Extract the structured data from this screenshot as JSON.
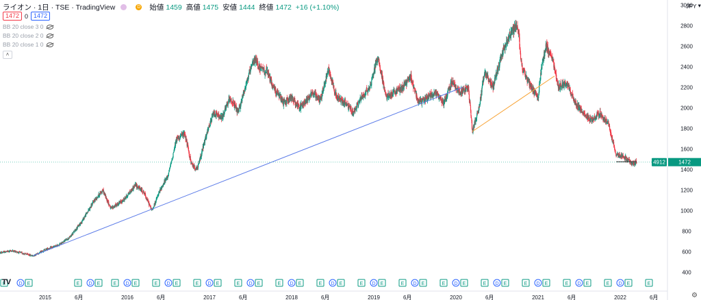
{
  "header": {
    "symbol": "ライオン · 1日 · TSE · TradingView",
    "open_label": "始値",
    "open": "1459",
    "high_label": "高値",
    "high": "1475",
    "low_label": "安値",
    "low": "1444",
    "close_label": "終値",
    "close": "1472",
    "change": "+16 (+1.10%)",
    "bid": "1472",
    "spread": "0",
    "ask": "1472"
  },
  "indicators": [
    "BB 20 close 3 0",
    "BB 20 close 2 0",
    "BB 20 close 1 0"
  ],
  "currency": "JPY",
  "price_tag": {
    "volume": "4912",
    "price": "1472"
  },
  "colors": {
    "up": "#089981",
    "down": "#f23645",
    "line_blue": "#5b7be8",
    "line_orange": "#f7a233",
    "price_line": "#5ec9b4"
  },
  "chart_data": {
    "type": "candlestick",
    "title": "",
    "xlabel": "",
    "ylabel": "",
    "ylim": [
      350,
      3050
    ],
    "y_ticks": [
      400,
      600,
      800,
      1000,
      1200,
      1400,
      1600,
      1800,
      2000,
      2200,
      2400,
      2600,
      2800,
      3000
    ],
    "x_ticks": [
      {
        "label": "2015",
        "t": 2015.0
      },
      {
        "label": "6月",
        "t": 2015.41
      },
      {
        "label": "2016",
        "t": 2016.0
      },
      {
        "label": "6月",
        "t": 2016.41
      },
      {
        "label": "2017",
        "t": 2017.0
      },
      {
        "label": "6月",
        "t": 2017.41
      },
      {
        "label": "2018",
        "t": 2018.0
      },
      {
        "label": "6月",
        "t": 2018.41
      },
      {
        "label": "2019",
        "t": 2019.0
      },
      {
        "label": "6月",
        "t": 2019.41
      },
      {
        "label": "2020",
        "t": 2020.0
      },
      {
        "label": "6月",
        "t": 2020.41
      },
      {
        "label": "2021",
        "t": 2021.0
      },
      {
        "label": "6月",
        "t": 2021.41
      },
      {
        "label": "2022",
        "t": 2022.0
      },
      {
        "label": "6月",
        "t": 2022.41
      }
    ],
    "xlim": [
      2014.45,
      2022.55
    ],
    "price_path": [
      [
        2014.45,
        590
      ],
      [
        2014.6,
        610
      ],
      [
        2014.75,
        580
      ],
      [
        2014.85,
        560
      ],
      [
        2015.0,
        620
      ],
      [
        2015.15,
        660
      ],
      [
        2015.3,
        740
      ],
      [
        2015.45,
        900
      ],
      [
        2015.6,
        1100
      ],
      [
        2015.7,
        1200
      ],
      [
        2015.8,
        1020
      ],
      [
        2015.95,
        1100
      ],
      [
        2016.1,
        1250
      ],
      [
        2016.2,
        1180
      ],
      [
        2016.3,
        1000
      ],
      [
        2016.4,
        1200
      ],
      [
        2016.5,
        1350
      ],
      [
        2016.6,
        1700
      ],
      [
        2016.7,
        1750
      ],
      [
        2016.78,
        1450
      ],
      [
        2016.85,
        1400
      ],
      [
        2016.95,
        1700
      ],
      [
        2017.05,
        1950
      ],
      [
        2017.15,
        1900
      ],
      [
        2017.25,
        2100
      ],
      [
        2017.35,
        1950
      ],
      [
        2017.45,
        2250
      ],
      [
        2017.55,
        2480
      ],
      [
        2017.62,
        2380
      ],
      [
        2017.7,
        2350
      ],
      [
        2017.78,
        2200
      ],
      [
        2017.9,
        2050
      ],
      [
        2018.0,
        2100
      ],
      [
        2018.1,
        2000
      ],
      [
        2018.25,
        2150
      ],
      [
        2018.35,
        2080
      ],
      [
        2018.45,
        2380
      ],
      [
        2018.55,
        2100
      ],
      [
        2018.65,
        2050
      ],
      [
        2018.75,
        1950
      ],
      [
        2018.85,
        2100
      ],
      [
        2018.95,
        2200
      ],
      [
        2019.05,
        2500
      ],
      [
        2019.15,
        2100
      ],
      [
        2019.25,
        2150
      ],
      [
        2019.35,
        2200
      ],
      [
        2019.45,
        2300
      ],
      [
        2019.55,
        2050
      ],
      [
        2019.65,
        2100
      ],
      [
        2019.75,
        2150
      ],
      [
        2019.85,
        2050
      ],
      [
        2019.95,
        2250
      ],
      [
        2020.05,
        2150
      ],
      [
        2020.15,
        2200
      ],
      [
        2020.2,
        1780
      ],
      [
        2020.28,
        2000
      ],
      [
        2020.35,
        2350
      ],
      [
        2020.45,
        2200
      ],
      [
        2020.55,
        2500
      ],
      [
        2020.65,
        2700
      ],
      [
        2020.75,
        2820
      ],
      [
        2020.8,
        2400
      ],
      [
        2020.88,
        2250
      ],
      [
        2020.95,
        2150
      ],
      [
        2021.0,
        2100
      ],
      [
        2021.05,
        2450
      ],
      [
        2021.1,
        2600
      ],
      [
        2021.18,
        2450
      ],
      [
        2021.25,
        2200
      ],
      [
        2021.35,
        2250
      ],
      [
        2021.45,
        2050
      ],
      [
        2021.55,
        1950
      ],
      [
        2021.65,
        1880
      ],
      [
        2021.75,
        1950
      ],
      [
        2021.85,
        1850
      ],
      [
        2021.9,
        1700
      ],
      [
        2021.95,
        1550
      ],
      [
        2022.05,
        1520
      ],
      [
        2022.15,
        1460
      ],
      [
        2022.2,
        1472
      ]
    ],
    "trendlines": [
      {
        "color": "blue",
        "from": [
          2014.85,
          560
        ],
        "to": [
          2020.08,
          2200
        ]
      },
      {
        "color": "orange",
        "from": [
          2020.2,
          1770
        ],
        "to": [
          2021.2,
          2310
        ]
      },
      {
        "color": "dark",
        "from": [
          2021.95,
          1475
        ],
        "to": [
          2022.2,
          1475
        ]
      }
    ],
    "last_price": 1472,
    "last_volume": 4912,
    "events": [
      {
        "t": 2014.5,
        "k": "E"
      },
      {
        "t": 2014.7,
        "k": "D"
      },
      {
        "t": 2014.8,
        "k": "E"
      },
      {
        "t": 2015.4,
        "k": "E"
      },
      {
        "t": 2015.55,
        "k": "D"
      },
      {
        "t": 2015.65,
        "k": "E"
      },
      {
        "t": 2015.85,
        "k": "E"
      },
      {
        "t": 2016.0,
        "k": "D"
      },
      {
        "t": 2016.1,
        "k": "E"
      },
      {
        "t": 2016.35,
        "k": "E"
      },
      {
        "t": 2016.5,
        "k": "D"
      },
      {
        "t": 2016.6,
        "k": "E"
      },
      {
        "t": 2016.85,
        "k": "E"
      },
      {
        "t": 2017.0,
        "k": "D"
      },
      {
        "t": 2017.1,
        "k": "E"
      },
      {
        "t": 2017.35,
        "k": "E"
      },
      {
        "t": 2017.5,
        "k": "D"
      },
      {
        "t": 2017.6,
        "k": "E"
      },
      {
        "t": 2017.85,
        "k": "E"
      },
      {
        "t": 2018.0,
        "k": "D"
      },
      {
        "t": 2018.1,
        "k": "E"
      },
      {
        "t": 2018.35,
        "k": "E"
      },
      {
        "t": 2018.5,
        "k": "D"
      },
      {
        "t": 2018.6,
        "k": "E"
      },
      {
        "t": 2018.85,
        "k": "E"
      },
      {
        "t": 2019.0,
        "k": "D"
      },
      {
        "t": 2019.1,
        "k": "E"
      },
      {
        "t": 2019.35,
        "k": "E"
      },
      {
        "t": 2019.5,
        "k": "D"
      },
      {
        "t": 2019.6,
        "k": "E"
      },
      {
        "t": 2019.85,
        "k": "E"
      },
      {
        "t": 2020.0,
        "k": "D"
      },
      {
        "t": 2020.1,
        "k": "E"
      },
      {
        "t": 2020.35,
        "k": "E"
      },
      {
        "t": 2020.5,
        "k": "D"
      },
      {
        "t": 2020.6,
        "k": "E"
      },
      {
        "t": 2020.85,
        "k": "E"
      },
      {
        "t": 2021.0,
        "k": "D"
      },
      {
        "t": 2021.1,
        "k": "E"
      },
      {
        "t": 2021.35,
        "k": "E"
      },
      {
        "t": 2021.5,
        "k": "D"
      },
      {
        "t": 2021.6,
        "k": "E"
      },
      {
        "t": 2021.85,
        "k": "E"
      },
      {
        "t": 2022.0,
        "k": "D"
      },
      {
        "t": 2022.1,
        "k": "E"
      },
      {
        "t": 2022.35,
        "k": "E"
      }
    ]
  }
}
